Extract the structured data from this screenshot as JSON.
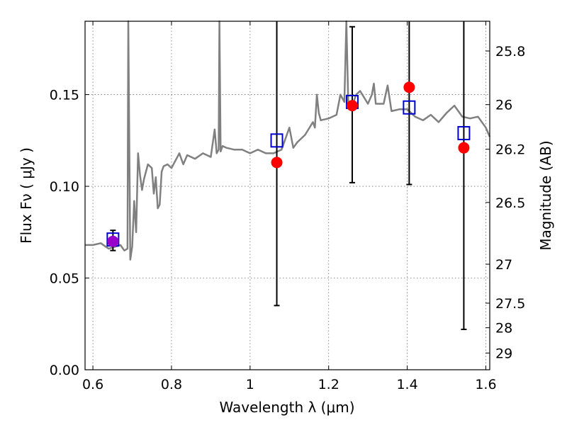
{
  "chart_data": {
    "type": "scatter",
    "xlabel": "Wavelength  λ (μm)",
    "ylabel": "Flux  Fν  ( μJy )",
    "ylabel_right": "Magnitude (AB)",
    "xlim": [
      0.58,
      1.61
    ],
    "ylim": [
      0.0,
      0.19
    ],
    "x_ticks": [
      0.6,
      0.8,
      1.0,
      1.2,
      1.4,
      1.6
    ],
    "x_tick_labels": [
      "0.6",
      "0.8",
      "1",
      "1.2",
      "1.4",
      "1.6"
    ],
    "y_ticks": [
      0.0,
      0.05,
      0.1,
      0.15
    ],
    "y_tick_labels": [
      "0.00",
      "0.05",
      "0.10",
      "0.15"
    ],
    "right_ticks": [
      {
        "label": "25.8",
        "mag": 25.8
      },
      {
        "label": "26",
        "mag": 26.0
      },
      {
        "label": "26.2",
        "mag": 26.2
      },
      {
        "label": "26.5",
        "mag": 26.5
      },
      {
        "label": "27",
        "mag": 27.0
      },
      {
        "label": "27.5",
        "mag": 27.5
      },
      {
        "label": "28",
        "mag": 28.0
      },
      {
        "label": "29",
        "mag": 29.0
      }
    ],
    "grid": true,
    "colors": {
      "spectrum": "#808080",
      "observed": "#ff0000",
      "model": "#0000cc",
      "errorbar": "#000000",
      "overlap": "#9900cc"
    },
    "spectrum": {
      "x": [
        0.58,
        0.6,
        0.62,
        0.64,
        0.655,
        0.67,
        0.68,
        0.688,
        0.69,
        0.695,
        0.7,
        0.705,
        0.71,
        0.715,
        0.72,
        0.725,
        0.73,
        0.74,
        0.75,
        0.755,
        0.76,
        0.765,
        0.77,
        0.775,
        0.78,
        0.79,
        0.8,
        0.82,
        0.83,
        0.84,
        0.86,
        0.88,
        0.9,
        0.91,
        0.915,
        0.92,
        0.922,
        0.925,
        0.93,
        0.94,
        0.96,
        0.98,
        1.0,
        1.02,
        1.04,
        1.06,
        1.08,
        1.1,
        1.11,
        1.12,
        1.14,
        1.16,
        1.165,
        1.17,
        1.175,
        1.18,
        1.2,
        1.22,
        1.23,
        1.24,
        1.245,
        1.25,
        1.26,
        1.27,
        1.28,
        1.3,
        1.31,
        1.315,
        1.32,
        1.34,
        1.35,
        1.36,
        1.38,
        1.4,
        1.42,
        1.44,
        1.46,
        1.48,
        1.5,
        1.52,
        1.54,
        1.56,
        1.58,
        1.6,
        1.61
      ],
      "flux": [
        0.068,
        0.068,
        0.069,
        0.066,
        0.067,
        0.068,
        0.065,
        0.066,
        0.19,
        0.06,
        0.067,
        0.092,
        0.075,
        0.118,
        0.106,
        0.098,
        0.104,
        0.112,
        0.11,
        0.096,
        0.105,
        0.088,
        0.09,
        0.108,
        0.111,
        0.112,
        0.11,
        0.118,
        0.112,
        0.117,
        0.115,
        0.118,
        0.116,
        0.131,
        0.118,
        0.12,
        0.19,
        0.119,
        0.122,
        0.121,
        0.12,
        0.12,
        0.118,
        0.12,
        0.118,
        0.118,
        0.12,
        0.132,
        0.121,
        0.124,
        0.128,
        0.135,
        0.132,
        0.15,
        0.14,
        0.136,
        0.137,
        0.139,
        0.15,
        0.146,
        0.19,
        0.145,
        0.144,
        0.15,
        0.152,
        0.145,
        0.15,
        0.156,
        0.145,
        0.145,
        0.155,
        0.141,
        0.142,
        0.142,
        0.138,
        0.136,
        0.139,
        0.135,
        0.14,
        0.144,
        0.138,
        0.137,
        0.138,
        0.132,
        0.127
      ]
    },
    "observed": [
      {
        "x": 0.651,
        "y": 0.07,
        "err": 0.006
      },
      {
        "x": 1.068,
        "y": 0.113,
        "err": 0.0
      },
      {
        "x": 1.26,
        "y": 0.144,
        "err": 0.0
      },
      {
        "x": 1.405,
        "y": 0.154,
        "err": 0.0
      },
      {
        "x": 1.544,
        "y": 0.121,
        "err": 0.0
      }
    ],
    "model": [
      {
        "x": 0.651,
        "y": 0.071,
        "ylo": 0.065,
        "yhi": 0.076
      },
      {
        "x": 1.068,
        "y": 0.125,
        "ylo": 0.035,
        "yhi": 0.19
      },
      {
        "x": 1.26,
        "y": 0.146,
        "ylo": 0.102,
        "yhi": 0.187
      },
      {
        "x": 1.405,
        "y": 0.143,
        "ylo": 0.101,
        "yhi": 0.19
      },
      {
        "x": 1.544,
        "y": 0.129,
        "ylo": 0.022,
        "yhi": 0.19
      }
    ]
  }
}
